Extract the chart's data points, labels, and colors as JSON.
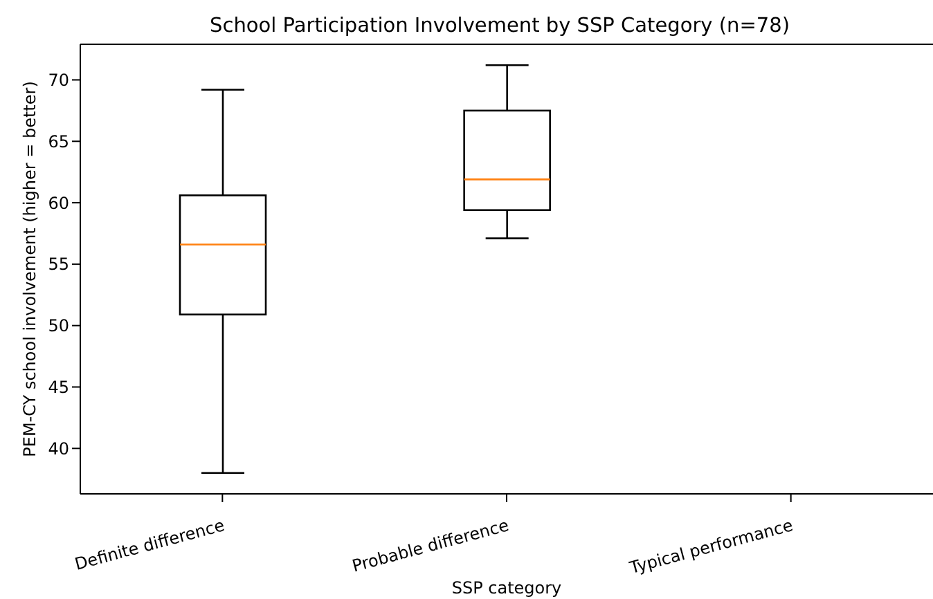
{
  "chart_data": {
    "type": "box",
    "title": "School Participation Involvement by SSP Category (n=78)",
    "xlabel": "SSP category",
    "ylabel": "PEM-CY school involvement (higher = better)",
    "categories": [
      "Definite difference",
      "Probable difference",
      "Typical performance"
    ],
    "boxes": [
      {
        "low": 38.0,
        "q1": 50.9,
        "median": 56.6,
        "q3": 60.6,
        "high": 69.2
      },
      {
        "low": 57.1,
        "q1": 59.4,
        "median": 61.9,
        "q3": 67.5,
        "high": 71.2
      },
      null
    ],
    "color": "#000000",
    "ylim": [
      36.3,
      72.9
    ],
    "yticks": [
      40,
      45,
      50,
      55,
      60,
      65,
      70
    ],
    "grid": false
  }
}
